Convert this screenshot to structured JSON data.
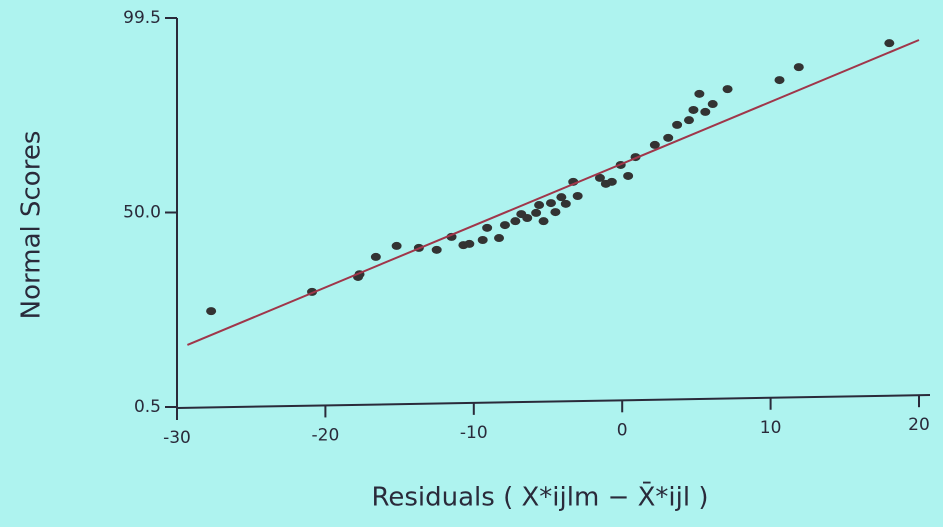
{
  "chart_data": {
    "type": "scatter",
    "x_label": "Residuals ( X*ijlm − X̄*ijl )",
    "y_label": "Normal Scores",
    "xlim": [
      -30,
      20
    ],
    "xticks": [
      -30,
      -20,
      -10,
      0,
      10,
      20
    ],
    "ylim": [
      0.5,
      99.5
    ],
    "yticks": [
      0.5,
      {
        "value": 50,
        "label": "50.0"
      },
      99.5
    ],
    "grid": false,
    "series": [
      {
        "type": "scatter",
        "color": "#333333",
        "x": [
          -27.7,
          -20.9,
          -17.8,
          -17.7,
          -16.6,
          -15.2,
          -13.7,
          -12.5,
          -11.5,
          -10.7,
          -10.3,
          -9.4,
          -9.1,
          -8.3,
          -7.9,
          -7.2,
          -6.8,
          -6.4,
          -5.8,
          -5.6,
          -5.3,
          -4.8,
          -4.5,
          -4.1,
          -3.8,
          -3.3,
          -3.0,
          -1.5,
          -1.1,
          -0.7,
          -0.1,
          0.4,
          0.9,
          2.2,
          3.1,
          3.7,
          4.5,
          4.8,
          5.2,
          5.6,
          6.1,
          7.1,
          10.6,
          11.9,
          18.0
        ],
        "values": [
          24.9,
          29.8,
          33.6,
          34.3,
          38.7,
          41.5,
          41.0,
          40.5,
          43.8,
          41.7,
          42.0,
          43.0,
          46.1,
          43.5,
          46.8,
          47.8,
          49.6,
          48.6,
          49.9,
          51.9,
          47.8,
          52.4,
          50.1,
          53.9,
          52.2,
          57.8,
          54.2,
          58.8,
          57.3,
          57.8,
          62.1,
          59.3,
          64.1,
          67.2,
          69.0,
          72.3,
          73.5,
          76.1,
          80.2,
          75.6,
          77.6,
          81.4,
          83.7,
          87.0,
          93.1
        ]
      },
      {
        "type": "line",
        "color": "#a0364a",
        "x": [
          -29.3,
          20
        ],
        "values": [
          16.3,
          93.9
        ]
      }
    ]
  }
}
